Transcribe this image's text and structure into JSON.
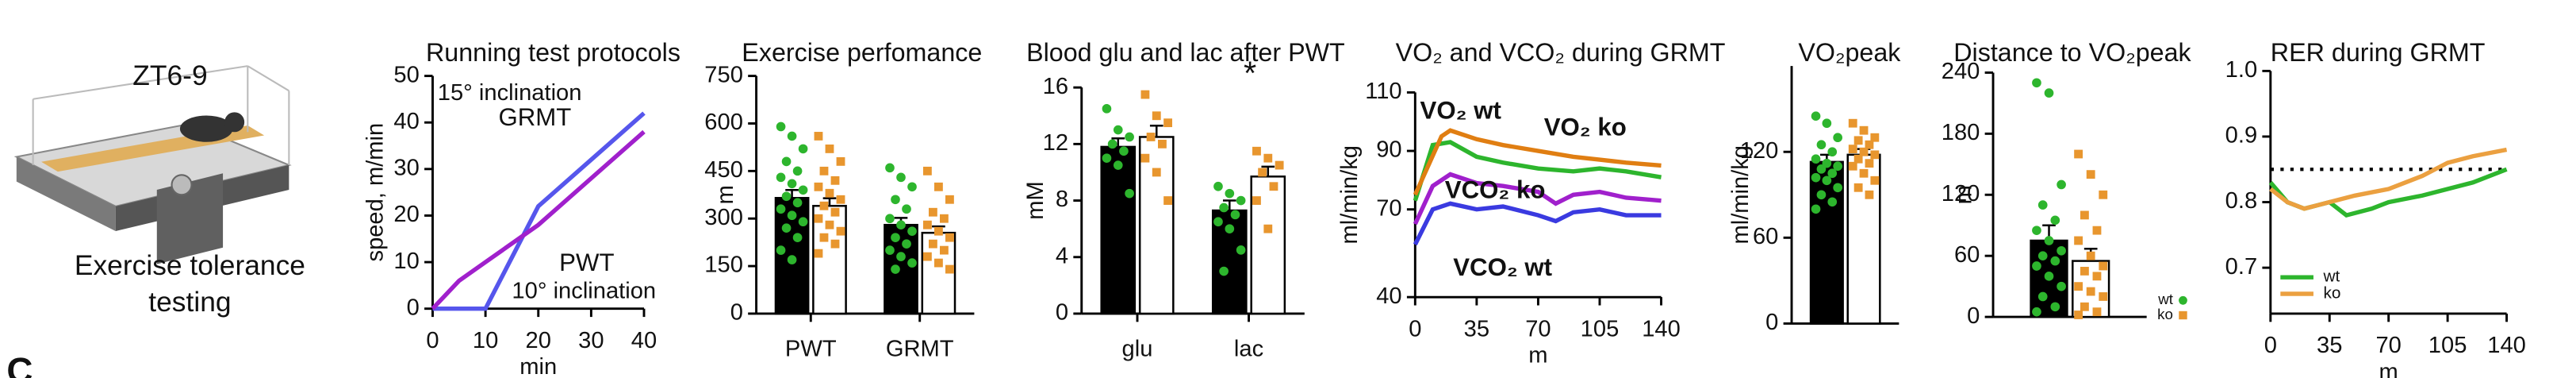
{
  "panel_label": "C",
  "illustration": {
    "label": "ZT6-9",
    "caption_lines": [
      "Exercise tolerance",
      "testing"
    ]
  },
  "chart_data": [
    {
      "type": "line",
      "title": "Running test protocols",
      "x_label": "min",
      "y_label": "speed, m/min",
      "xlim": [
        0,
        40
      ],
      "xticks": [
        0,
        10,
        20,
        30,
        40
      ],
      "ylim": [
        0,
        50
      ],
      "yticks": [
        0,
        10,
        20,
        30,
        40,
        50
      ],
      "annotations": [
        "15° inclination",
        "10° inclination"
      ],
      "series": [
        {
          "name": "GRMT",
          "color": "#5656ec",
          "x": [
            0,
            10,
            20,
            40
          ],
          "values": [
            0,
            0,
            22,
            42
          ]
        },
        {
          "name": "PWT",
          "color": "#a020cc",
          "x": [
            0,
            5,
            10,
            20,
            40
          ],
          "values": [
            0,
            6,
            10,
            18,
            38
          ]
        }
      ]
    },
    {
      "type": "bar",
      "title": "Exercise perfomance",
      "y_label": "m",
      "categories": [
        "PWT",
        "GRMT"
      ],
      "ylim": [
        0,
        750
      ],
      "yticks": [
        0,
        150,
        300,
        450,
        600,
        750
      ],
      "series": [
        {
          "color": "#000000",
          "point_color": "#2db52d",
          "marker": "circle",
          "values": [
            365,
            280
          ],
          "errors": [
            25,
            22
          ],
          "points": [
            [
              590,
              560,
              520,
              480,
              450,
              430,
              410,
              390,
              370,
              350,
              330,
              310,
              290,
              270,
              240,
              200,
              170
            ],
            [
              460,
              430,
              400,
              360,
              330,
              300,
              280,
              260,
              240,
              220,
              200,
              180,
              160,
              140
            ]
          ]
        },
        {
          "color": "#ffffff",
          "point_color": "#e8962e",
          "marker": "square",
          "values": [
            340,
            255
          ],
          "errors": [
            24,
            20
          ],
          "points": [
            [
              560,
              520,
              480,
              450,
              420,
              400,
              380,
              360,
              340,
              320,
              300,
              280,
              260,
              240,
              220,
              190
            ],
            [
              450,
              400,
              360,
              320,
              300,
              280,
              260,
              240,
              220,
              200,
              180,
              160,
              140
            ]
          ]
        }
      ]
    },
    {
      "type": "bar",
      "title": "Blood glu and lac after PWT",
      "y_label": "mM",
      "categories": [
        "glu",
        "lac"
      ],
      "ylim": [
        0,
        16
      ],
      "yticks": [
        0,
        4,
        8,
        12,
        16
      ],
      "annotations": [
        "*"
      ],
      "series": [
        {
          "color": "#000000",
          "point_color": "#2db52d",
          "marker": "circle",
          "values": [
            11.8,
            7.3
          ],
          "errors": [
            0.6,
            0.7
          ],
          "points": [
            [
              14.5,
              13,
              12.5,
              12,
              11.5,
              11,
              10.5,
              8.5
            ],
            [
              9,
              8.5,
              8,
              7.5,
              7,
              6.5,
              6,
              4.5,
              3
            ]
          ]
        },
        {
          "color": "#ffffff",
          "point_color": "#e8962e",
          "marker": "square",
          "values": [
            12.5,
            9.7
          ],
          "errors": [
            0.8,
            0.7
          ],
          "points": [
            [
              15.5,
              14,
              13.5,
              12.5,
              12,
              11,
              10,
              8
            ],
            [
              11.5,
              11,
              10.5,
              10,
              9,
              8,
              6
            ]
          ]
        }
      ]
    },
    {
      "type": "line",
      "title": "VO₂ and  VCO₂ during GRMT",
      "x_label": "m",
      "y_label": "ml/min/kg",
      "xlim": [
        0,
        140
      ],
      "xticks": [
        0,
        35,
        70,
        105,
        140
      ],
      "ylim": [
        40,
        110
      ],
      "yticks": [
        40,
        70,
        90,
        110
      ],
      "series": [
        {
          "name": "VO₂ wt",
          "color": "#2db52d",
          "x": [
            0,
            10,
            20,
            35,
            50,
            70,
            90,
            105,
            120,
            140
          ],
          "values": [
            73,
            92,
            93,
            88,
            86,
            84,
            83,
            84,
            83,
            81
          ]
        },
        {
          "name": "VO₂ ko",
          "color": "#e07e12",
          "x": [
            0,
            15,
            20,
            35,
            50,
            70,
            90,
            105,
            120,
            140
          ],
          "values": [
            75,
            95,
            97,
            94,
            92,
            90,
            88,
            87,
            86,
            85
          ]
        },
        {
          "name": "VCO₂ ko",
          "color": "#a020cc",
          "x": [
            0,
            10,
            20,
            35,
            50,
            70,
            80,
            90,
            105,
            120,
            140
          ],
          "values": [
            65,
            78,
            82,
            79,
            78,
            76,
            72,
            75,
            76,
            74,
            73
          ]
        },
        {
          "name": "VCO₂ wt",
          "color": "#3a3ae0",
          "x": [
            0,
            10,
            20,
            35,
            50,
            70,
            80,
            90,
            105,
            120,
            140
          ],
          "values": [
            58,
            70,
            72,
            70,
            71,
            68,
            66,
            69,
            70,
            68,
            68
          ]
        }
      ]
    },
    {
      "type": "bar",
      "title": "VO₂peak",
      "y_label": "ml/min/kg",
      "categories": [
        null
      ],
      "ylim": [
        0,
        180
      ],
      "yticks": [
        0,
        60,
        120
      ],
      "series": [
        {
          "color": "#000000",
          "point_color": "#2db52d",
          "marker": "circle",
          "values": [
            113
          ],
          "errors": [
            5
          ],
          "points": [
            [
              145,
              140,
              130,
              125,
              120,
              115,
              112,
              110,
              108,
              105,
              102,
              100,
              95,
              90,
              85,
              80
            ]
          ]
        },
        {
          "color": "#ffffff",
          "point_color": "#e8962e",
          "marker": "square",
          "values": [
            118
          ],
          "errors": [
            4
          ],
          "points": [
            [
              140,
              135,
              130,
              128,
              125,
              122,
              120,
              118,
              115,
              112,
              110,
              105,
              100,
              95,
              90
            ]
          ]
        }
      ]
    },
    {
      "type": "bar",
      "title": "Distance to VO₂peak",
      "y_label": "m",
      "legend": "right-bottom",
      "categories": [
        null
      ],
      "ylim": [
        0,
        240
      ],
      "yticks": [
        0,
        60,
        120,
        180,
        240
      ],
      "series": [
        {
          "name": "wt",
          "color": "#000000",
          "point_color": "#2db52d",
          "marker": "circle",
          "values": [
            75
          ],
          "errors": [
            15
          ],
          "points": [
            [
              230,
              220,
              130,
              110,
              95,
              85,
              75,
              65,
              60,
              55,
              50,
              40,
              30,
              20,
              10,
              5
            ]
          ]
        },
        {
          "name": "ko",
          "color": "#ffffff",
          "point_color": "#e8962e",
          "marker": "square",
          "values": [
            55
          ],
          "errors": [
            12
          ],
          "points": [
            [
              160,
              140,
              120,
              100,
              85,
              75,
              60,
              50,
              45,
              40,
              30,
              25,
              20,
              10,
              5,
              2
            ]
          ]
        }
      ]
    },
    {
      "type": "line",
      "title": "RER during GRMT",
      "x_label": "m",
      "legend": "lower-left",
      "ref_line": 0.85,
      "xlim": [
        0,
        140
      ],
      "xticks": [
        0,
        35,
        70,
        105,
        140
      ],
      "ylim": [
        0.63,
        1.0
      ],
      "yticks": [
        0.7,
        0.8,
        0.9,
        {
          "value": 1.0,
          "label": "1.0"
        }
      ],
      "series": [
        {
          "name": "wt",
          "color": "#2db52d",
          "x": [
            0,
            10,
            20,
            35,
            45,
            60,
            70,
            90,
            105,
            120,
            140
          ],
          "values": [
            0.83,
            0.8,
            0.79,
            0.8,
            0.78,
            0.79,
            0.8,
            0.81,
            0.82,
            0.83,
            0.85
          ]
        },
        {
          "name": "ko",
          "color": "#eba040",
          "x": [
            0,
            10,
            20,
            35,
            50,
            70,
            90,
            105,
            120,
            140
          ],
          "values": [
            0.82,
            0.8,
            0.79,
            0.8,
            0.81,
            0.82,
            0.84,
            0.86,
            0.87,
            0.88
          ]
        }
      ]
    }
  ]
}
